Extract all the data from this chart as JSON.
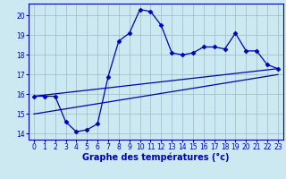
{
  "xlabel": "Graphe des températures (°c)",
  "bg_color": "#cce8f0",
  "line_color": "#0000bb",
  "grid_color": "#99bbcc",
  "xlim": [
    -0.5,
    23.5
  ],
  "ylim": [
    13.7,
    20.6
  ],
  "yticks": [
    14,
    15,
    16,
    17,
    18,
    19,
    20
  ],
  "xticks": [
    0,
    1,
    2,
    3,
    4,
    5,
    6,
    7,
    8,
    9,
    10,
    11,
    12,
    13,
    14,
    15,
    16,
    17,
    18,
    19,
    20,
    21,
    22,
    23
  ],
  "line_main": {
    "x": [
      0,
      1,
      2,
      3,
      4,
      5,
      6,
      7,
      8,
      9,
      10,
      11,
      12,
      13,
      14,
      15,
      16,
      17,
      18,
      19,
      20,
      21,
      22,
      23
    ],
    "y": [
      15.9,
      15.9,
      15.9,
      14.6,
      14.1,
      14.2,
      14.5,
      16.9,
      18.7,
      19.1,
      20.3,
      20.2,
      19.5,
      18.1,
      18.0,
      18.1,
      18.4,
      18.4,
      18.3,
      19.1,
      18.2,
      18.2,
      17.5,
      17.3
    ]
  },
  "line_upper": {
    "x": [
      0,
      23
    ],
    "y": [
      15.9,
      17.3
    ]
  },
  "line_lower": {
    "x": [
      0,
      23
    ],
    "y": [
      15.0,
      17.0
    ]
  }
}
